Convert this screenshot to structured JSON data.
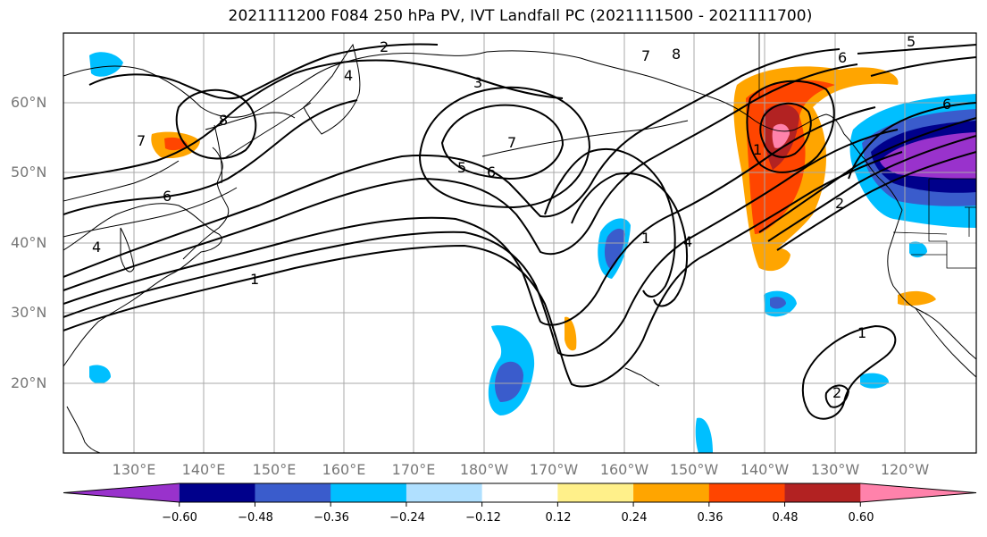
{
  "title": "2021111200 F084 250 hPa PV, IVT Landfall PC (2021111500 - 2021111700)",
  "map": {
    "lat_labels": [
      "60°N",
      "50°N",
      "40°N",
      "30°N",
      "20°N"
    ],
    "lon_labels": [
      "130°E",
      "140°E",
      "150°E",
      "160°E",
      "170°E",
      "180°W",
      "170°W",
      "160°W",
      "150°W",
      "140°W",
      "130°W",
      "120°W"
    ],
    "contour_labels": [
      "1",
      "1",
      "1",
      "1",
      "2",
      "2",
      "2",
      "3",
      "4",
      "4",
      "4",
      "5",
      "5",
      "6",
      "6",
      "6",
      "6",
      "7",
      "7",
      "7",
      "8",
      "8"
    ]
  },
  "colorbar": {
    "colors": [
      "#9932cc",
      "#00008b",
      "#3a5ccc",
      "#00bfff",
      "#b0e0ff",
      "#ffffff",
      "#fff08a",
      "#ffa500",
      "#ff4500",
      "#b22222",
      "#ff82ab"
    ],
    "tick_labels": [
      "−0.60",
      "−0.48",
      "−0.36",
      "−0.24",
      "−0.12",
      "0.12",
      "0.24",
      "0.36",
      "0.48",
      "0.60"
    ]
  }
}
